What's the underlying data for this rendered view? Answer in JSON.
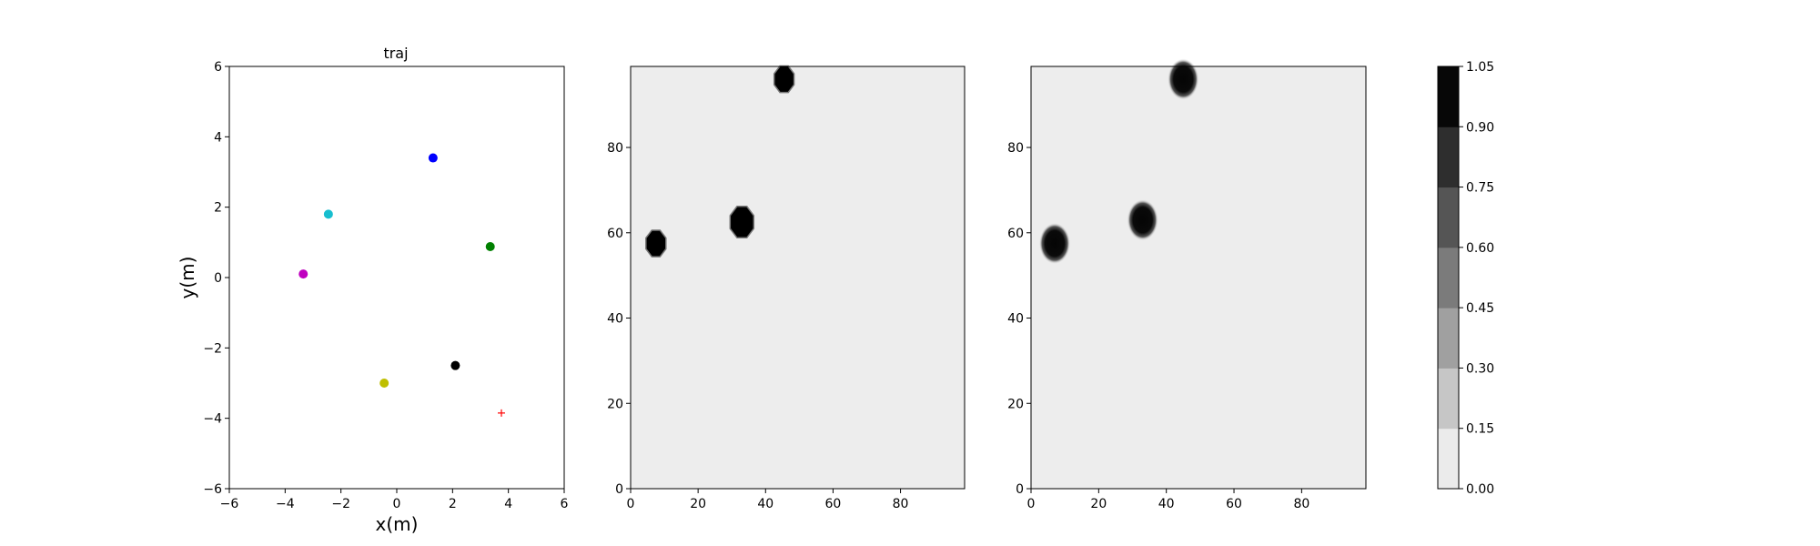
{
  "chart_data": [
    {
      "type": "scatter",
      "title": "traj",
      "xlabel": "x(m)",
      "ylabel": "y(m)",
      "xlim": [
        -6,
        6
      ],
      "ylim": [
        -6,
        6
      ],
      "xticks": [
        -6,
        -4,
        -2,
        0,
        2,
        4,
        6
      ],
      "yticks": [
        -6,
        -4,
        -2,
        0,
        2,
        4,
        6
      ],
      "grid": false,
      "points": [
        {
          "x": 1.3,
          "y": 3.4,
          "color": "#0000ff",
          "marker": "circle"
        },
        {
          "x": -2.45,
          "y": 1.8,
          "color": "#17becf",
          "marker": "circle"
        },
        {
          "x": 3.35,
          "y": 0.88,
          "color": "#008000",
          "marker": "circle"
        },
        {
          "x": -3.35,
          "y": 0.1,
          "color": "#bf00bf",
          "marker": "circle"
        },
        {
          "x": 2.1,
          "y": -2.5,
          "color": "#000000",
          "marker": "circle"
        },
        {
          "x": -0.45,
          "y": -3.0,
          "color": "#bfbf00",
          "marker": "circle"
        },
        {
          "x": 3.75,
          "y": -3.85,
          "color": "#ff0000",
          "marker": "plus"
        }
      ]
    },
    {
      "type": "heatmap",
      "xlim": [
        0,
        99
      ],
      "ylim": [
        0,
        99
      ],
      "xticks": [
        0,
        20,
        40,
        60,
        80
      ],
      "yticks": [
        0,
        20,
        40,
        60,
        80
      ],
      "background_level": 0.07,
      "blobs": [
        {
          "cx": 7.5,
          "cy": 57.5,
          "r": 3.2,
          "level": 1.0
        },
        {
          "cx": 33,
          "cy": 62.5,
          "r": 3.8,
          "level": 1.0
        },
        {
          "cx": 45.5,
          "cy": 96,
          "r": 3.2,
          "level": 1.0
        }
      ],
      "style": "sharp"
    },
    {
      "type": "heatmap",
      "xlim": [
        0,
        99
      ],
      "ylim": [
        0,
        99
      ],
      "xticks": [
        0,
        20,
        40,
        60,
        80
      ],
      "yticks": [
        0,
        20,
        40,
        60,
        80
      ],
      "background_level": 0.07,
      "blobs": [
        {
          "cx": 7,
          "cy": 57.5,
          "r": 3.4,
          "level": 1.0
        },
        {
          "cx": 33,
          "cy": 63,
          "r": 3.4,
          "level": 1.0
        },
        {
          "cx": 45,
          "cy": 96,
          "r": 3.4,
          "level": 1.0
        }
      ],
      "style": "soft"
    }
  ],
  "colorbar": {
    "ticks": [
      "0.00",
      "0.15",
      "0.30",
      "0.45",
      "0.60",
      "0.75",
      "0.90",
      "1.05"
    ],
    "colors": [
      "#ebebeb",
      "#c6c6c6",
      "#a0a0a0",
      "#7b7b7b",
      "#555555",
      "#2e2e2e",
      "#070707"
    ]
  }
}
